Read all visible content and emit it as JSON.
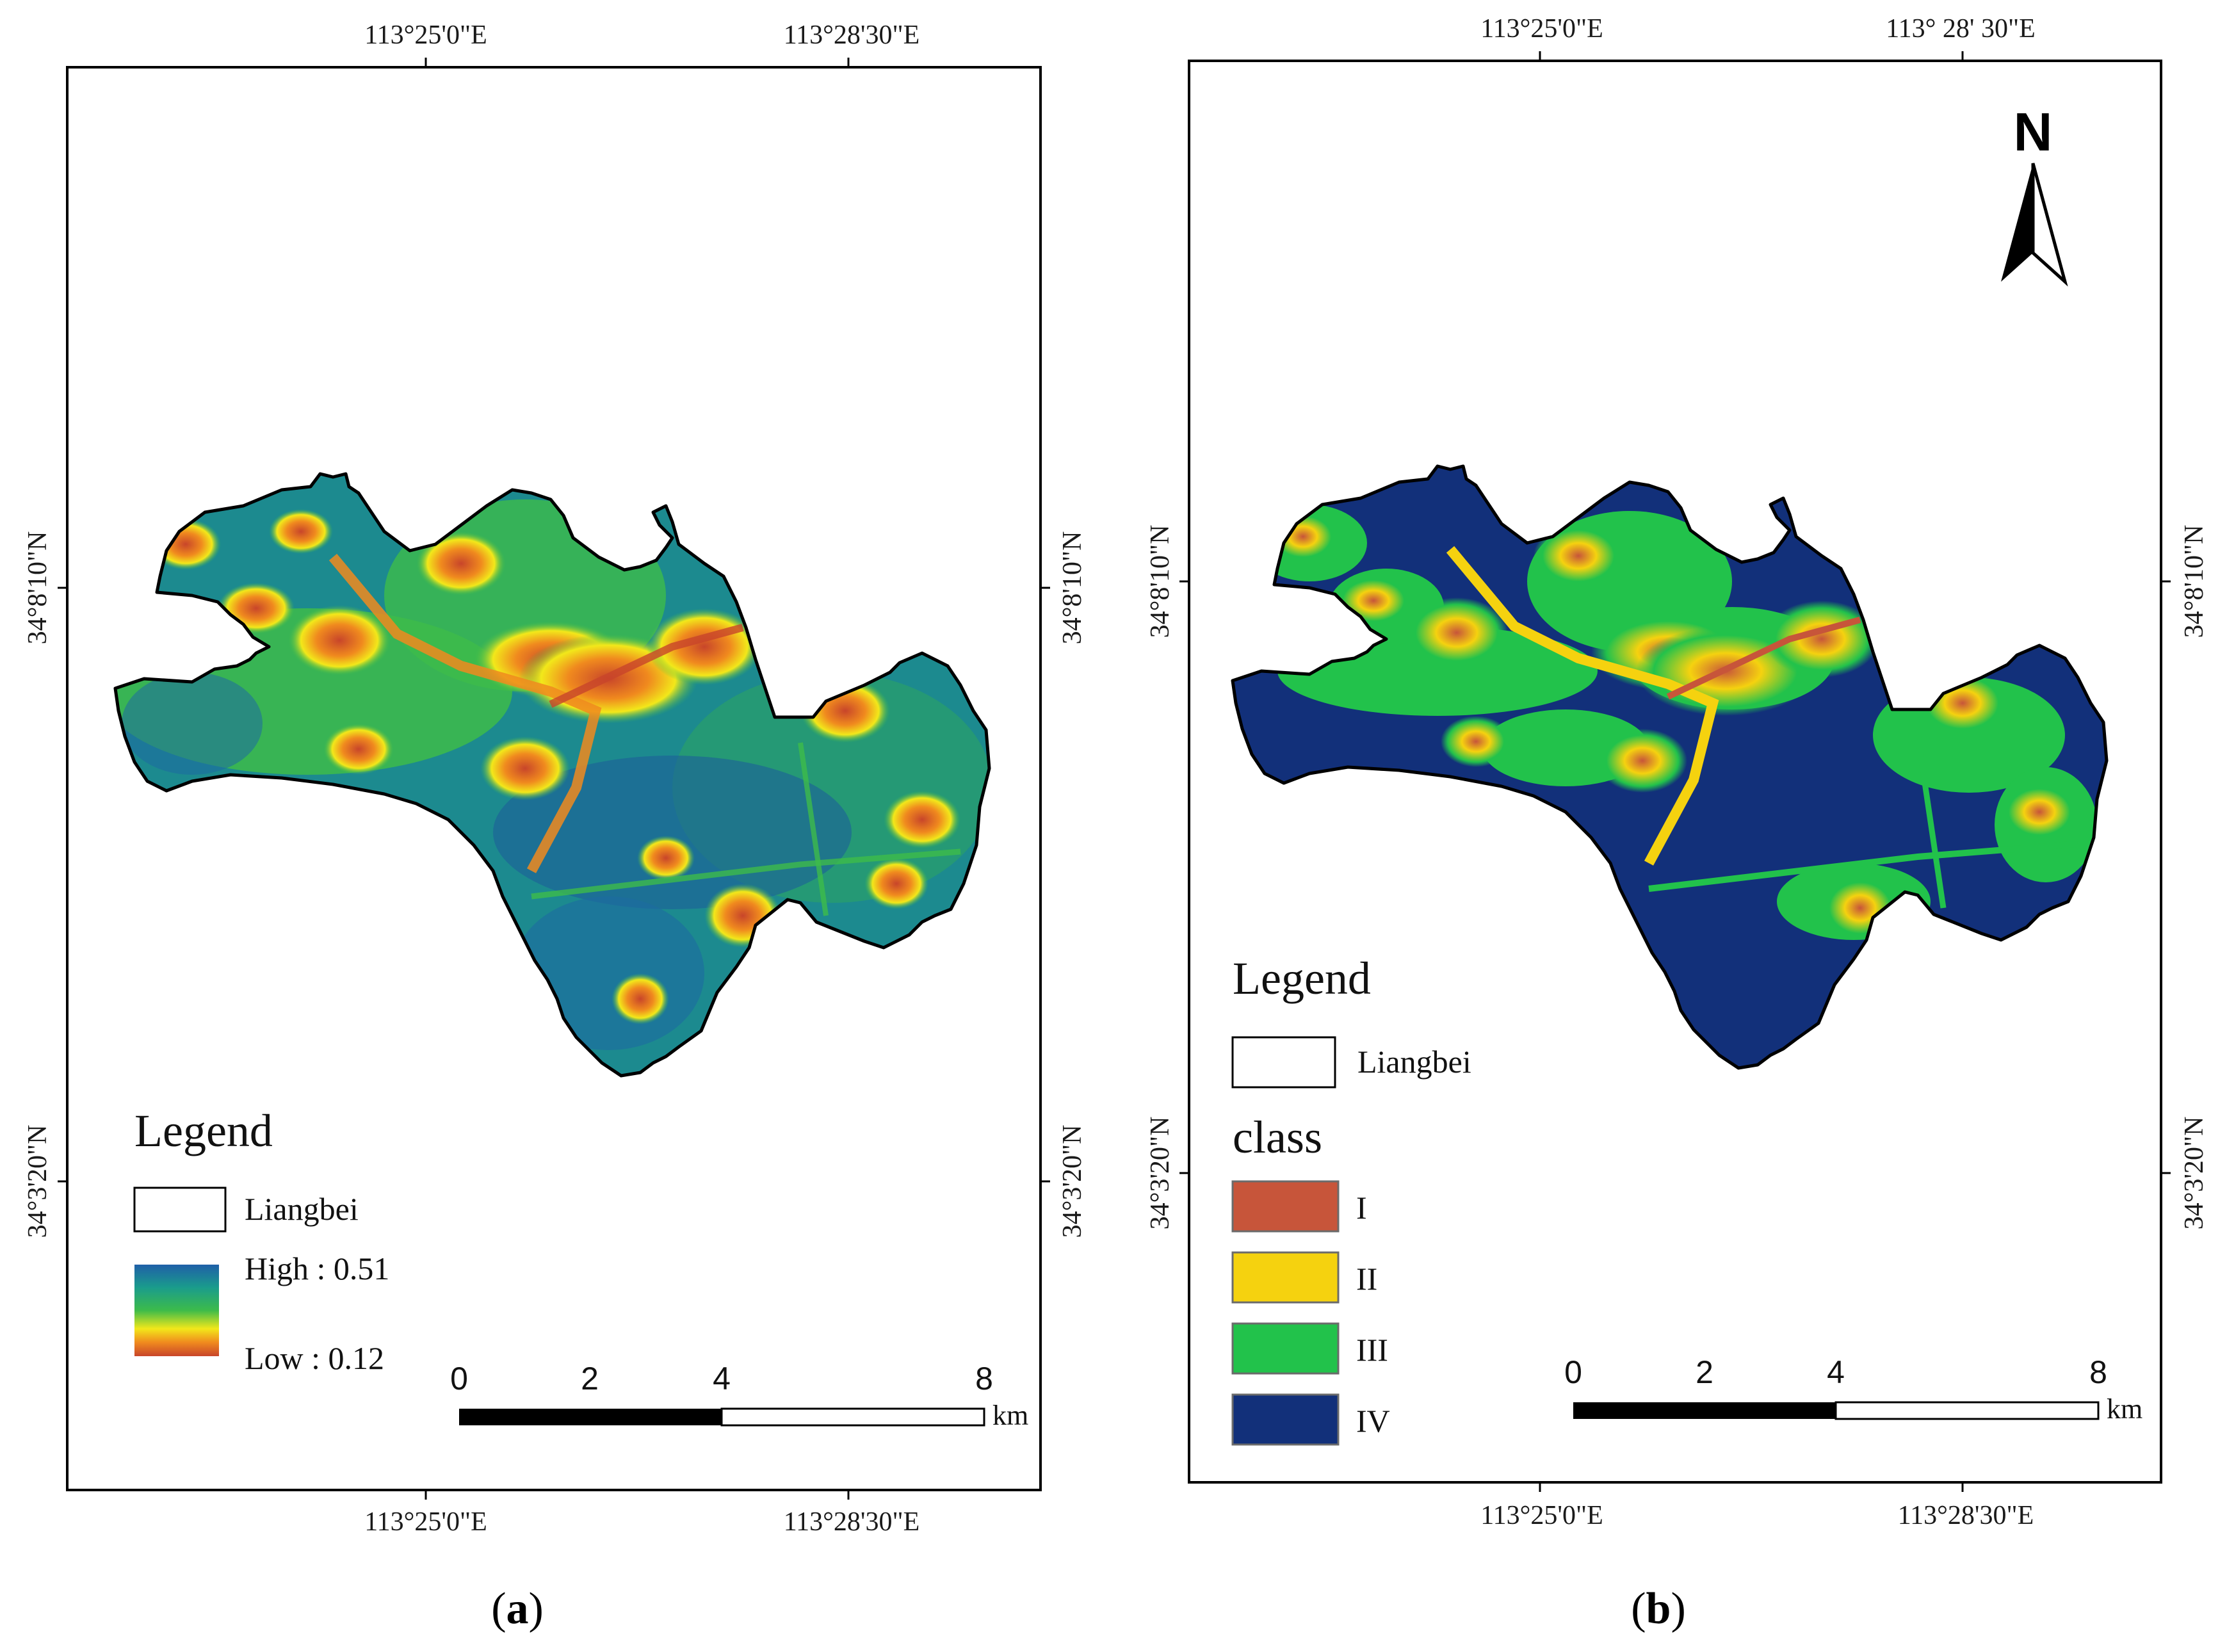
{
  "panel_a": {
    "top_ticks": [
      "113°25'0\"E",
      "113°28'30\"E"
    ],
    "bottom_ticks": [
      "113°25'0\"E",
      "113°28'30\"E"
    ],
    "left_ticks": [
      "34°8'10\"N",
      "34°3'20\"N"
    ],
    "right_ticks": [
      "34°8'10\"N",
      "34°3'20\"N"
    ],
    "legend": {
      "title": "Legend",
      "boundary_label": "Liangbei",
      "high_label": "High : 0.51",
      "low_label": "Low : 0.12",
      "ramp_colors": [
        "#1f5fa8",
        "#1a9c8c",
        "#3dbb4a",
        "#f2e81a",
        "#f08a1e",
        "#c8452a"
      ]
    },
    "scale_bar": {
      "ticks": [
        "0",
        "2",
        "4",
        "8"
      ],
      "unit": "km"
    },
    "label_open": "(",
    "label_letter": "a",
    "label_close": ")"
  },
  "panel_b": {
    "top_ticks": [
      "113°25'0\"E",
      "113°  28' 30\"E"
    ],
    "bottom_ticks": [
      "113°25'0\"E",
      "113°28'30\"E"
    ],
    "left_ticks": [
      "34°8'10\"N",
      "34°3'20\"N"
    ],
    "right_ticks": [
      "34°8'10\"N",
      "34°3'20\"N"
    ],
    "north_arrow_label": "N",
    "legend": {
      "title": "Legend",
      "boundary_label": "Liangbei",
      "class_title": "class",
      "classes": [
        {
          "label": "I",
          "color": "#c7553a"
        },
        {
          "label": "II",
          "color": "#f5d20f"
        },
        {
          "label": "III",
          "color": "#22c24b"
        },
        {
          "label": "IV",
          "color": "#12307a"
        }
      ]
    },
    "scale_bar": {
      "ticks": [
        "0",
        "2",
        "4",
        "8"
      ],
      "unit": "km"
    },
    "label_open": "(",
    "label_letter": "b",
    "label_close": ")"
  }
}
